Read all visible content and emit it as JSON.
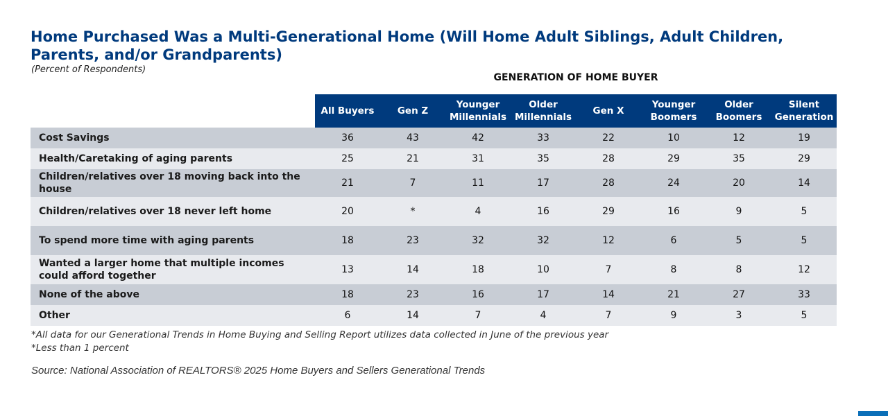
{
  "title": "Home Purchased Was a Multi-Generational Home (Will Home Adult Siblings, Adult Children, Parents, and/or Grandparents)",
  "subtitle": "(Percent of Respondents)",
  "group_label": "GENERATION OF HOME BUYER",
  "colors": {
    "title": "#003a7d",
    "header_bg": "#003a7d",
    "row_dark": "#c8cdd5",
    "row_light": "#e8eaee",
    "corner_bar": "#0b6fb8"
  },
  "chart_data": {
    "type": "table",
    "columns": [
      "All Buyers",
      "Gen Z",
      "Younger Millennials",
      "Older Millennials",
      "Gen X",
      "Younger Boomers",
      "Older Boomers",
      "Silent Generation"
    ],
    "column_lines": [
      [
        "All Buyers"
      ],
      [
        "Gen Z"
      ],
      [
        "Younger",
        "Millennials"
      ],
      [
        "Older",
        "Millennials"
      ],
      [
        "Gen X"
      ],
      [
        "Younger",
        "Boomers"
      ],
      [
        "Older",
        "Boomers"
      ],
      [
        "Silent",
        "Generation"
      ]
    ],
    "rows": [
      {
        "label": "Cost Savings",
        "values": [
          "36",
          "43",
          "42",
          "33",
          "22",
          "10",
          "12",
          "19"
        ]
      },
      {
        "label": "Health/Caretaking of aging parents",
        "values": [
          "25",
          "21",
          "31",
          "35",
          "28",
          "29",
          "35",
          "29"
        ]
      },
      {
        "label": "Children/relatives over 18 moving back into the house",
        "values": [
          "21",
          "7",
          "11",
          "17",
          "28",
          "24",
          "20",
          "14"
        ]
      },
      {
        "label": "Children/relatives over 18 never left home",
        "values": [
          "20",
          "*",
          "4",
          "16",
          "29",
          "16",
          "9",
          "5"
        ]
      },
      {
        "label": "To spend more time with aging parents",
        "values": [
          "18",
          "23",
          "32",
          "32",
          "12",
          "6",
          "5",
          "5"
        ]
      },
      {
        "label": "Wanted a larger home that multiple incomes could afford together",
        "values": [
          "13",
          "14",
          "18",
          "10",
          "7",
          "8",
          "8",
          "12"
        ]
      },
      {
        "label": "None of the above",
        "values": [
          "18",
          "23",
          "16",
          "17",
          "14",
          "21",
          "27",
          "33"
        ]
      },
      {
        "label": "Other",
        "values": [
          "6",
          "14",
          "7",
          "4",
          "7",
          "9",
          "3",
          "5"
        ]
      }
    ]
  },
  "footnotes": [
    "*All data for our Generational Trends in Home Buying and Selling Report utilizes data collected in June of the previous year",
    "*Less than 1 percent"
  ],
  "source": "Source: National Association of REALTORS® 2025 Home Buyers and Sellers Generational Trends"
}
